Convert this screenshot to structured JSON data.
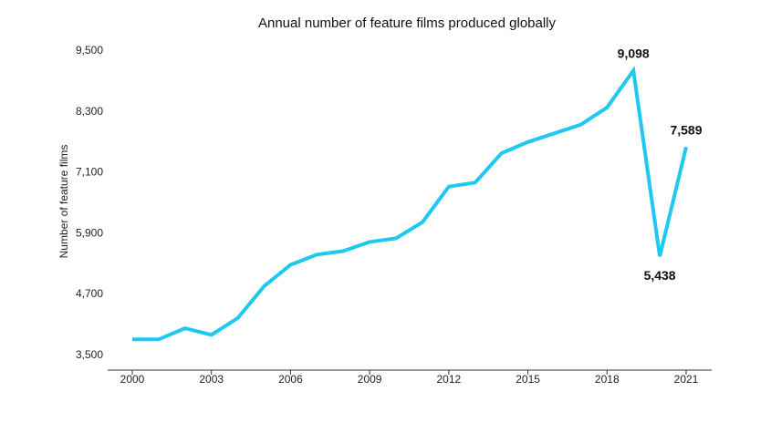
{
  "chart_data": {
    "type": "line",
    "title": "Annual number of feature films produced globally",
    "xlabel": "",
    "ylabel": "Number of feature films",
    "x": [
      2000,
      2001,
      2002,
      2003,
      2004,
      2005,
      2006,
      2007,
      2008,
      2009,
      2010,
      2011,
      2012,
      2013,
      2014,
      2015,
      2016,
      2017,
      2018,
      2019,
      2020,
      2021
    ],
    "series": [
      {
        "values": [
          3800,
          3800,
          4020,
          3890,
          4220,
          4850,
          5270,
          5470,
          5540,
          5720,
          5790,
          6110,
          6810,
          6890,
          7470,
          7690,
          7860,
          8030,
          8370,
          9098,
          5438,
          7589
        ]
      }
    ],
    "xticks": [
      "2000",
      "2003",
      "2006",
      "2009",
      "2012",
      "2015",
      "2018",
      "2021"
    ],
    "yticks": [
      "3,500",
      "4,700",
      "5,900",
      "7,100",
      "8,300",
      "9,500"
    ],
    "ylim": [
      3500,
      9500
    ],
    "xlim": [
      2000,
      2021
    ],
    "annotations": [
      {
        "x": 2019,
        "value": 9098,
        "text": "9,098",
        "placement": "above"
      },
      {
        "x": 2020,
        "value": 5438,
        "text": "5,438",
        "placement": "below"
      },
      {
        "x": 2021,
        "value": 7589,
        "text": "7,589",
        "placement": "above"
      }
    ],
    "colors": {
      "line": "#1ec8ee",
      "axis": "#333333"
    },
    "grid": false,
    "legend": "none"
  }
}
